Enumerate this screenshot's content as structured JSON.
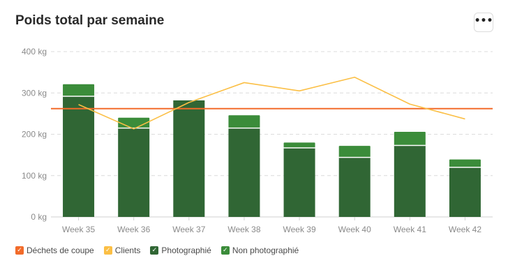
{
  "title": "Poids total par semaine",
  "menu_icon": "more-horizontal-icon",
  "chart_data": {
    "type": "bar",
    "stacked": true,
    "categories": [
      "Week 35",
      "Week 36",
      "Week 37",
      "Week 38",
      "Week 39",
      "Week 40",
      "Week 41",
      "Week 42"
    ],
    "ylim": [
      0,
      400
    ],
    "y_ticks": [
      "0 kg",
      "100 kg",
      "200 kg",
      "300 kg",
      "400 kg"
    ],
    "y_tick_values": [
      0,
      100,
      200,
      300,
      400
    ],
    "grid": true,
    "legend_position": "bottom-left",
    "series": [
      {
        "name": "Déchets de coupe",
        "type": "line",
        "color": "#f26b2a",
        "values": [
          262,
          262,
          262,
          262,
          262,
          262,
          262,
          262
        ]
      },
      {
        "name": "Clients",
        "type": "line",
        "color": "#fbbf45",
        "values": [
          272,
          213,
          277,
          325,
          305,
          338,
          273,
          237
        ]
      },
      {
        "name": "Photographié",
        "type": "bar",
        "color": "#306634",
        "values": [
          292,
          215,
          282,
          215,
          167,
          144,
          173,
          120
        ]
      },
      {
        "name": "Non photographié",
        "type": "bar",
        "color": "#3b8c3a",
        "values": [
          29,
          25,
          0,
          31,
          13,
          28,
          33,
          19
        ]
      }
    ]
  }
}
